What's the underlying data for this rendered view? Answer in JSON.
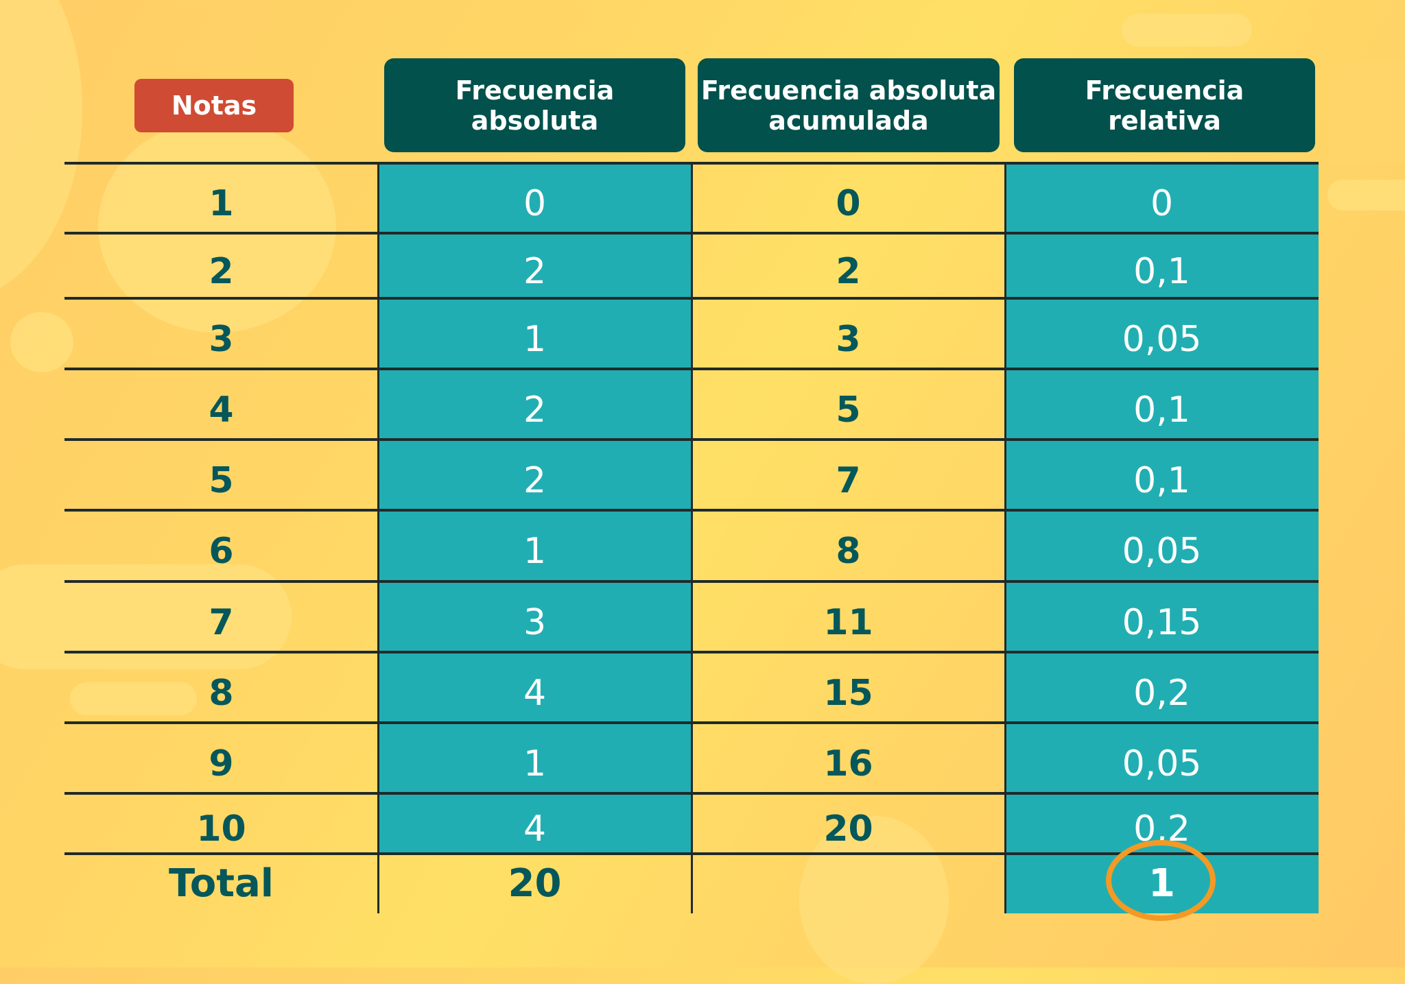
{
  "headers": {
    "notas": "Notas",
    "frecuencia_absoluta": [
      "Frecuencia",
      "absoluta"
    ],
    "frecuencia_absoluta_acumulada": [
      "Frecuencia absoluta",
      "acumulada"
    ],
    "frecuencia_relativa": [
      "Frecuencia",
      "relativa"
    ]
  },
  "rows": [
    {
      "nota": "1",
      "fa": "0",
      "faa": "0",
      "fr": "0"
    },
    {
      "nota": "2",
      "fa": "2",
      "faa": "2",
      "fr": "0,1"
    },
    {
      "nota": "3",
      "fa": "1",
      "faa": "3",
      "fr": "0,05"
    },
    {
      "nota": "4",
      "fa": "2",
      "faa": "5",
      "fr": "0,1"
    },
    {
      "nota": "5",
      "fa": "2",
      "faa": "7",
      "fr": "0,1"
    },
    {
      "nota": "6",
      "fa": "1",
      "faa": "8",
      "fr": "0,05"
    },
    {
      "nota": "7",
      "fa": "3",
      "faa": "11",
      "fr": "0,15"
    },
    {
      "nota": "8",
      "fa": "4",
      "faa": "15",
      "fr": "0,2"
    },
    {
      "nota": "9",
      "fa": "1",
      "faa": "16",
      "fr": "0,05"
    },
    {
      "nota": "10",
      "fa": "4",
      "faa": "20",
      "fr": "0,2"
    }
  ],
  "total": {
    "label": "Total",
    "fa": "20",
    "faa": "",
    "fr": "1"
  },
  "highlight": {
    "target": "total.fr",
    "color": "#f39a25"
  },
  "colors": {
    "background": "#ffd866",
    "header_box": "#02514c",
    "notas_badge": "#cf4b33",
    "teal_column": "#21aeb2",
    "dark_text": "#06575a"
  },
  "chart_data": {
    "type": "table",
    "title": "",
    "columns": [
      "Notas",
      "Frecuencia absoluta",
      "Frecuencia absoluta acumulada",
      "Frecuencia relativa"
    ],
    "rows": [
      [
        "1",
        0,
        0,
        0
      ],
      [
        "2",
        2,
        2,
        0.1
      ],
      [
        "3",
        1,
        3,
        0.05
      ],
      [
        "4",
        2,
        5,
        0.1
      ],
      [
        "5",
        2,
        7,
        0.1
      ],
      [
        "6",
        1,
        8,
        0.05
      ],
      [
        "7",
        3,
        11,
        0.15
      ],
      [
        "8",
        4,
        15,
        0.2
      ],
      [
        "9",
        1,
        16,
        0.05
      ],
      [
        "10",
        4,
        20,
        0.2
      ]
    ],
    "totals": [
      "Total",
      20,
      null,
      1
    ],
    "annotations": [
      "orange circle around total relative frequency 1"
    ]
  }
}
